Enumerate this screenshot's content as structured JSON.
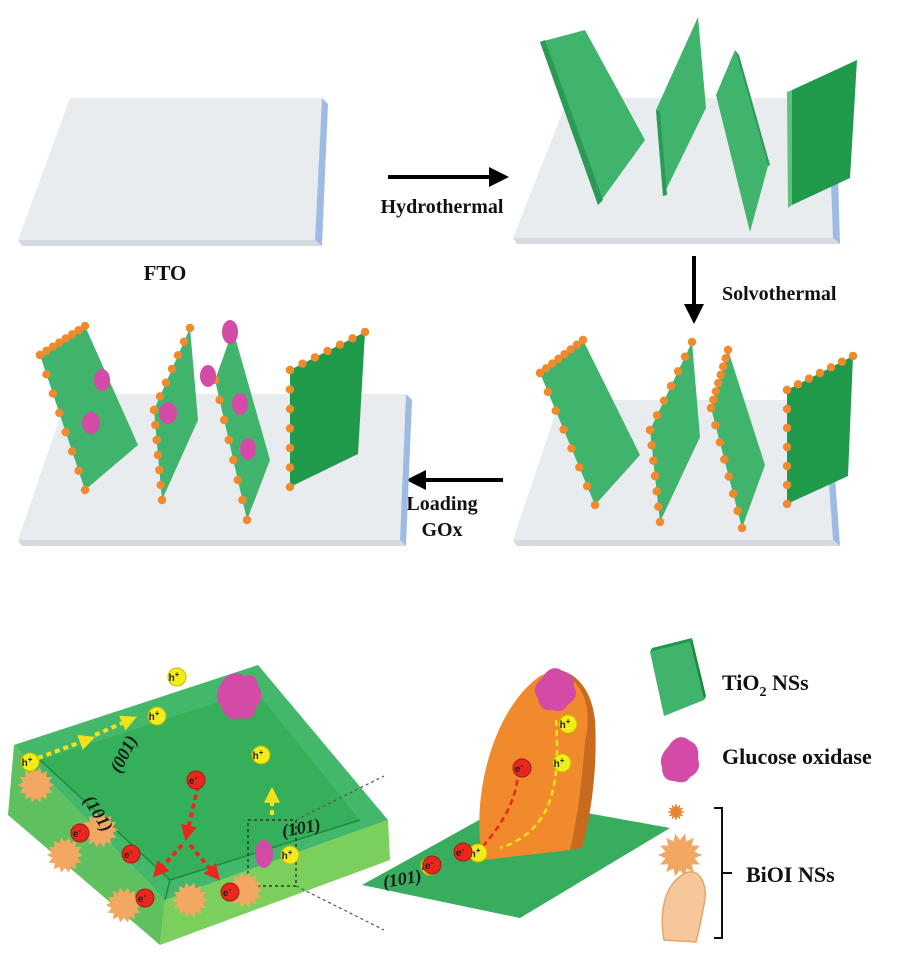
{
  "top": {
    "substrate_label": "FTO",
    "steps": [
      {
        "text": "Hydrothermal"
      },
      {
        "text": "Solvothermal"
      },
      {
        "lines": [
          "Loading",
          "GOx"
        ]
      }
    ]
  },
  "bottom": {
    "facets": [
      "(001)",
      "(101)",
      "(101)",
      "(101)"
    ],
    "carriers": {
      "hole": "h",
      "hole_sup": "+",
      "electron": "e",
      "electron_sup": "-"
    }
  },
  "legend": {
    "tio2": {
      "main": "TiO",
      "sub": "2",
      "rest": " NSs"
    },
    "gox": "Glucose oxidase",
    "bioi": "BiOI NSs"
  },
  "colors": {
    "sheet": "#3fb06a",
    "sheet_dark": "#1e9a4a",
    "substrate_top": "#e9ecef",
    "substrate_edge": "#9dbbe3",
    "bioi_particle": "#f08a2c",
    "gox_enzyme": "#d44aa7",
    "electron": "#e8281e",
    "hole": "#f2ec1a",
    "bioi_star": "#f2a862",
    "bioi_plate": "#f7c79c"
  }
}
